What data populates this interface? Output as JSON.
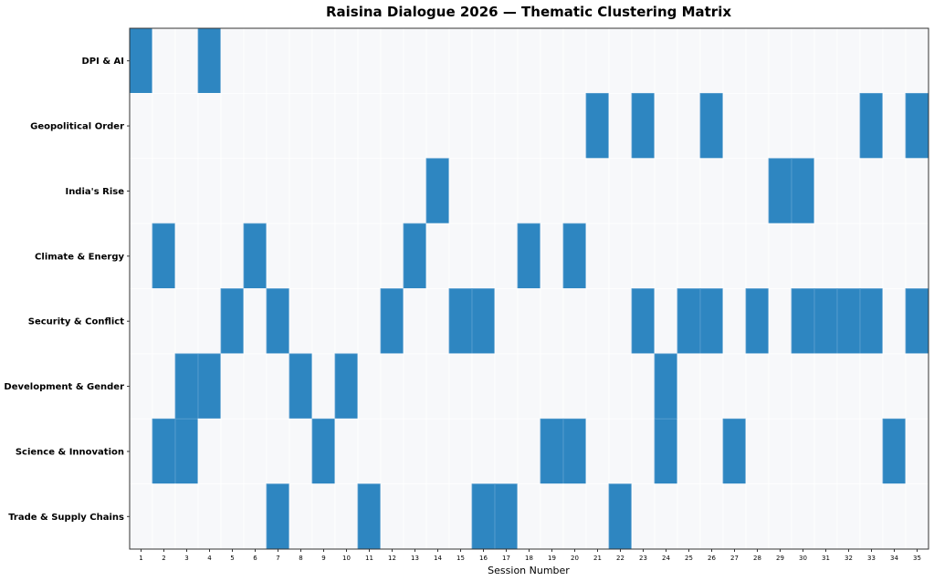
{
  "chart_data": {
    "type": "heatmap",
    "title": "Raisina Dialogue 2026 — Thematic Clustering Matrix",
    "xlabel": "Session Number",
    "ylabel": "",
    "x": [
      1,
      2,
      3,
      4,
      5,
      6,
      7,
      8,
      9,
      10,
      11,
      12,
      13,
      14,
      15,
      16,
      17,
      18,
      19,
      20,
      21,
      22,
      23,
      24,
      25,
      26,
      27,
      28,
      29,
      30,
      31,
      32,
      33,
      34,
      35
    ],
    "rows": [
      {
        "theme": "DPI & AI",
        "sessions": [
          1,
          4
        ]
      },
      {
        "theme": "Geopolitical Order",
        "sessions": [
          21,
          23,
          26,
          33,
          35
        ]
      },
      {
        "theme": "India's Rise",
        "sessions": [
          14,
          29,
          30
        ]
      },
      {
        "theme": "Climate & Energy",
        "sessions": [
          2,
          6,
          13,
          18,
          20
        ]
      },
      {
        "theme": "Security & Conflict",
        "sessions": [
          5,
          7,
          12,
          15,
          16,
          23,
          25,
          26,
          28,
          30,
          31,
          32,
          33,
          35
        ]
      },
      {
        "theme": "Development & Gender",
        "sessions": [
          3,
          4,
          8,
          10,
          24
        ]
      },
      {
        "theme": "Science & Innovation",
        "sessions": [
          2,
          3,
          9,
          19,
          20,
          24,
          27,
          34
        ]
      },
      {
        "theme": "Trade & Supply Chains",
        "sessions": [
          7,
          11,
          16,
          17,
          22
        ]
      }
    ],
    "colors": {
      "active": "#2e86c1",
      "inactive": "#f7f8fa",
      "grid": "#ffffff"
    }
  }
}
